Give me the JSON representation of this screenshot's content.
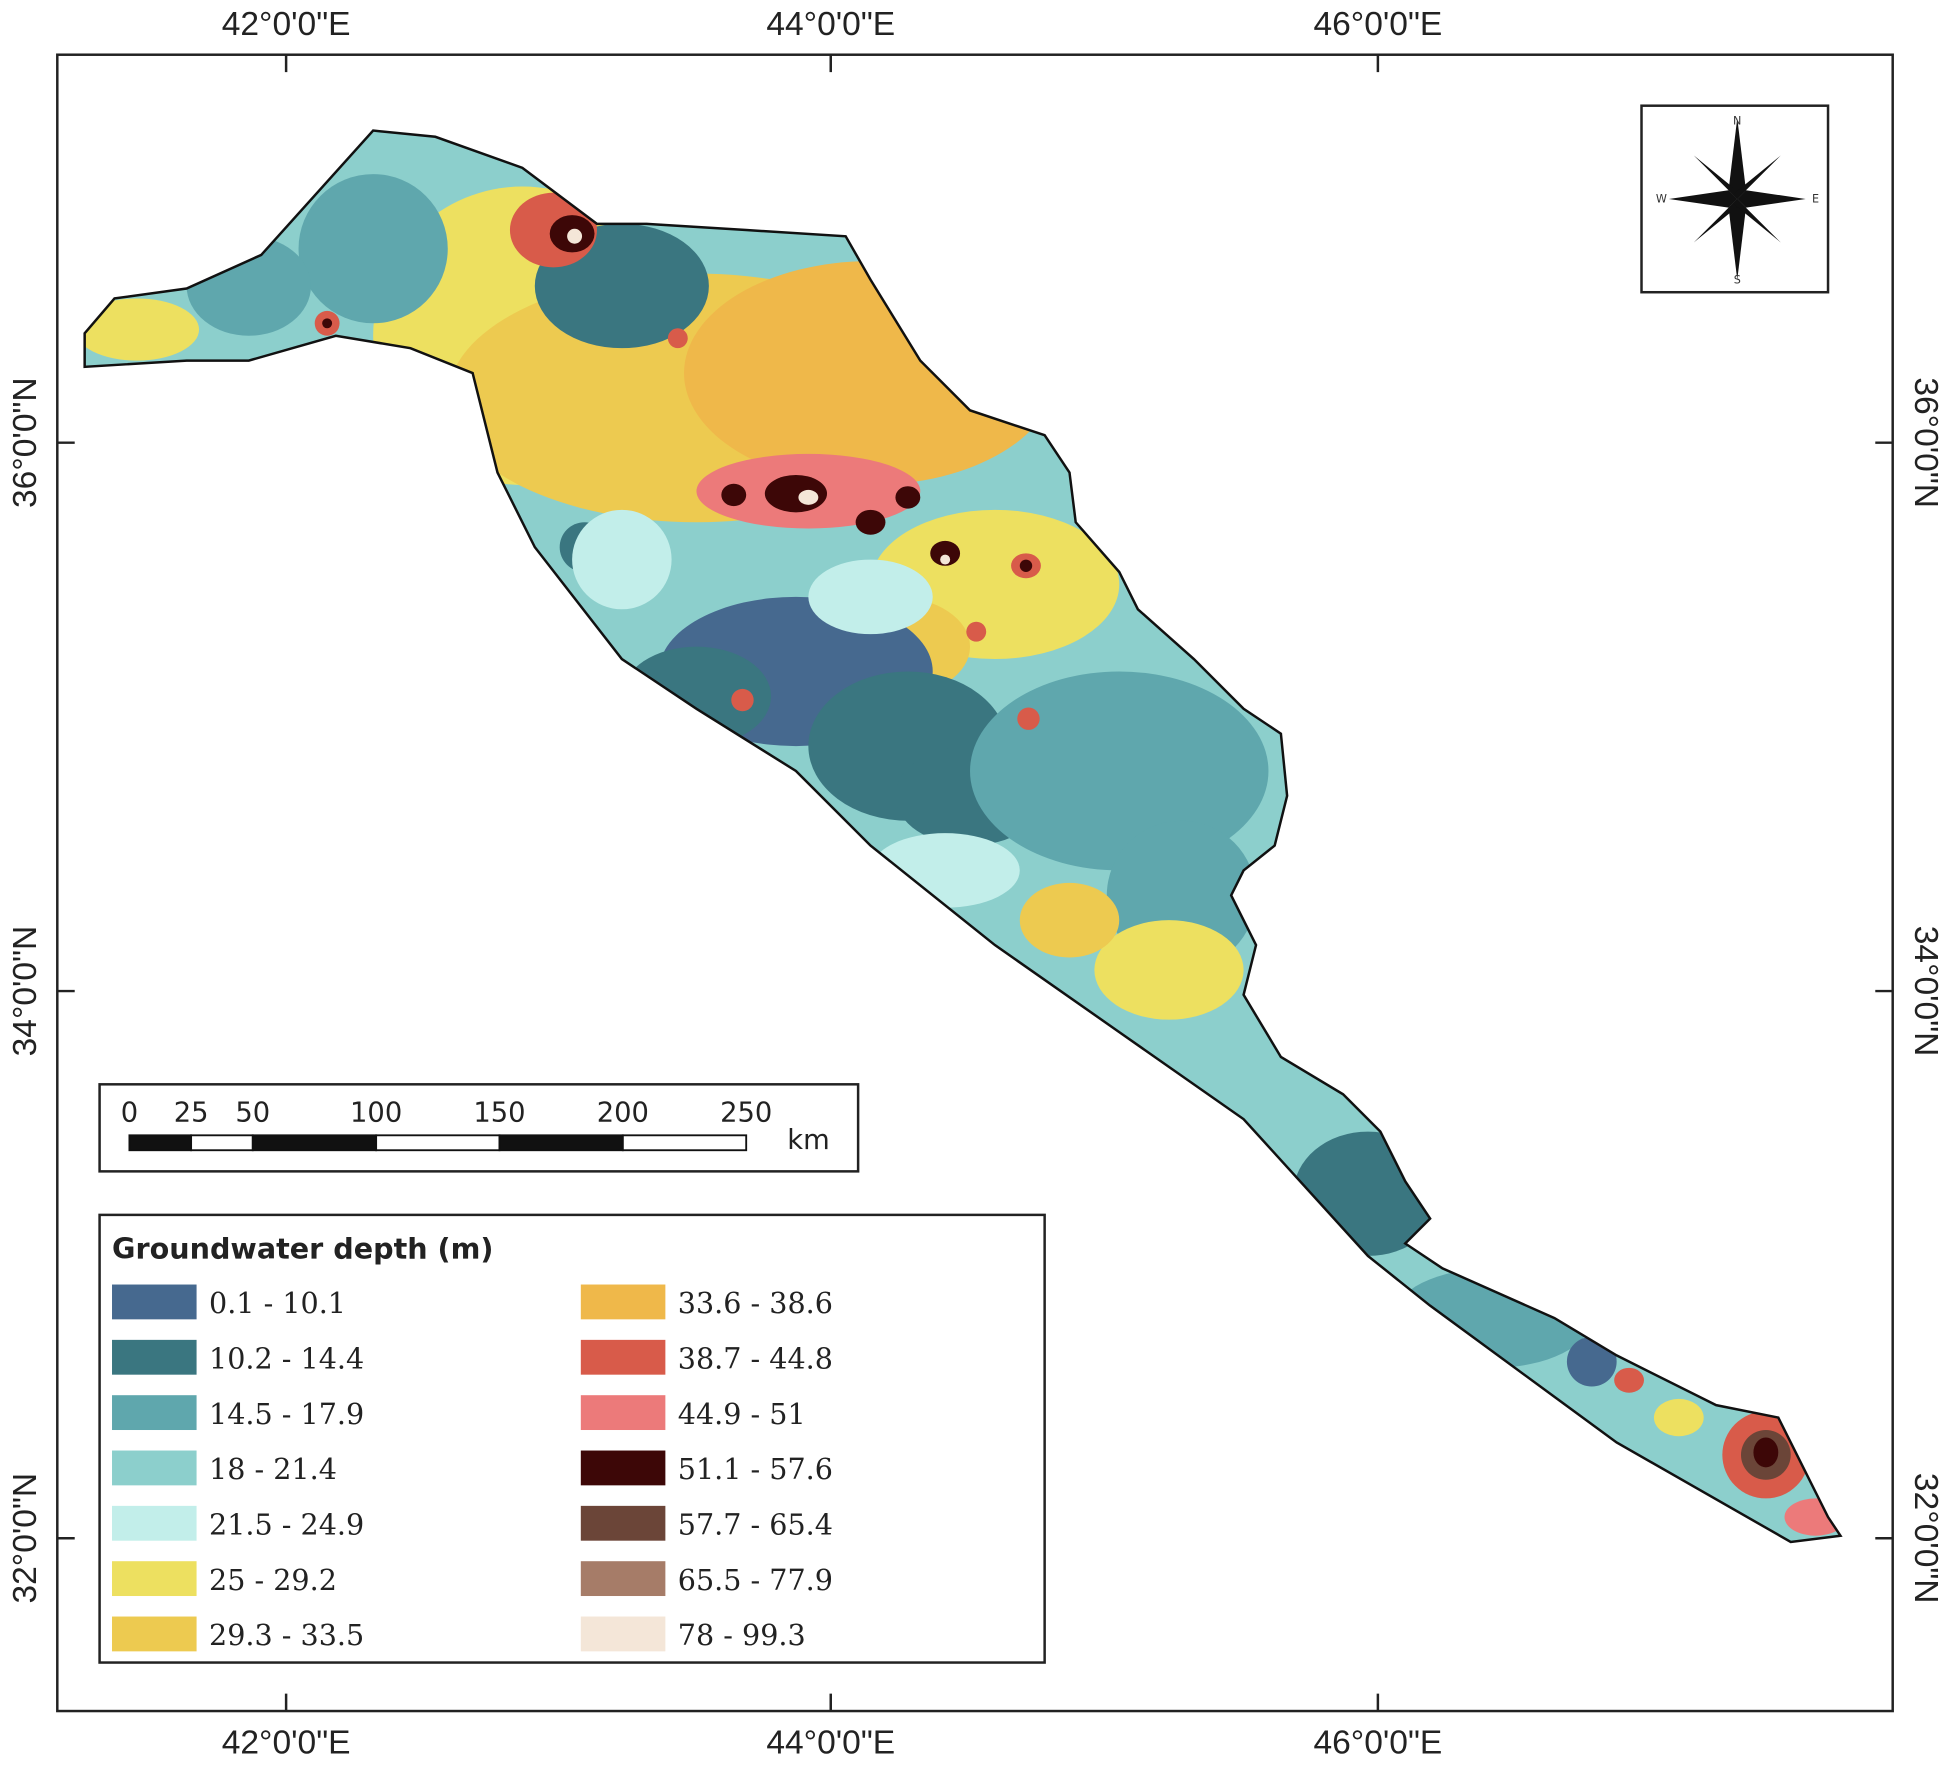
{
  "map": {
    "graticule": {
      "top": [
        "42°0'0\"E",
        "44°0'0\"E",
        "46°0'0\"E"
      ],
      "bottom": [
        "42°0'0\"E",
        "44°0'0\"E",
        "46°0'0\"E"
      ],
      "left": [
        "36°0'0\"N",
        "34°0'0\"N",
        "32°0'0\"N"
      ],
      "right": [
        "36°0'0\"N",
        "34°0'0\"N",
        "32°0'0\"N"
      ]
    },
    "compass": {
      "n": "N",
      "s": "S",
      "e": "E",
      "w": "W"
    },
    "scale_bar": {
      "labels": [
        0,
        25,
        50,
        100,
        150,
        200,
        250
      ],
      "unit": "km"
    },
    "legend": {
      "title": "Groundwater depth (m)",
      "items": [
        {
          "label": "0.1 - 10.1",
          "color": "#46698f"
        },
        {
          "label": "10.2 - 14.4",
          "color": "#3a7680"
        },
        {
          "label": "14.5 - 17.9",
          "color": "#5fa7ad"
        },
        {
          "label": "18 - 21.4",
          "color": "#8ccfcc"
        },
        {
          "label": "21.5 - 24.9",
          "color": "#c2eeea"
        },
        {
          "label": "25 - 29.2",
          "color": "#ede060"
        },
        {
          "label": "29.3 - 33.5",
          "color": "#edca50"
        },
        {
          "label": "33.6 - 38.6",
          "color": "#efb84a"
        },
        {
          "label": "38.7 - 44.8",
          "color": "#d85b4a"
        },
        {
          "label": "44.9 - 51",
          "color": "#ec7a7a"
        },
        {
          "label": "51.1 - 57.6",
          "color": "#3d0707"
        },
        {
          "label": "57.7 - 65.4",
          "color": "#6b4538"
        },
        {
          "label": "65.5 - 77.9",
          "color": "#a67c68"
        },
        {
          "label": "78 - 99.3",
          "color": "#f4e6d8"
        }
      ]
    }
  }
}
